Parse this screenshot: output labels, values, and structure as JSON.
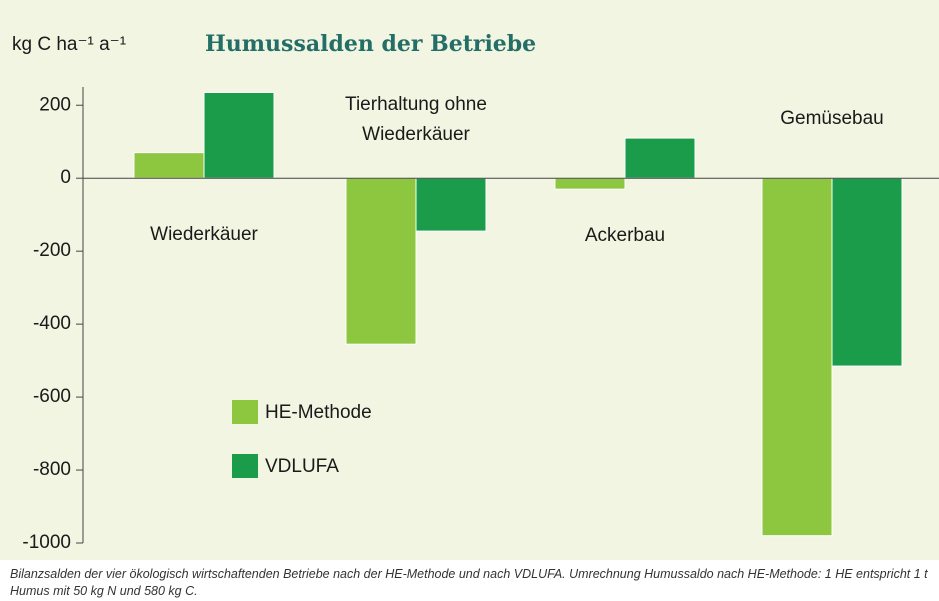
{
  "chart_data": {
    "type": "bar",
    "title": "Humussalden der Betriebe",
    "y_label": "kg C ha⁻¹ a⁻¹",
    "categories": [
      "Wiederkäuer",
      "Tierhaltung ohne\nWiederkäuer",
      "Ackerbau",
      "Gemüsebau"
    ],
    "series": [
      {
        "name": "HE-Methode",
        "color": "#8dc63f",
        "values": [
          70,
          -455,
          -30,
          -980
        ]
      },
      {
        "name": "VDLUFA",
        "color": "#1a9c4b",
        "values": [
          235,
          -145,
          110,
          -515
        ]
      }
    ],
    "ylim": [
      -1000,
      250
    ],
    "yticks": [
      200,
      0,
      -200,
      -400,
      -600,
      -800,
      -1000
    ],
    "legend": "center-left",
    "caption": "Bilanzsalden der vier ökologisch wirtschaftenden Betriebe nach der HE-Methode und nach VDLUFA. Umrechnung Humussaldo nach HE-Methode: 1 HE entspricht 1 t Humus mit 50 kg N und 580 kg C."
  }
}
